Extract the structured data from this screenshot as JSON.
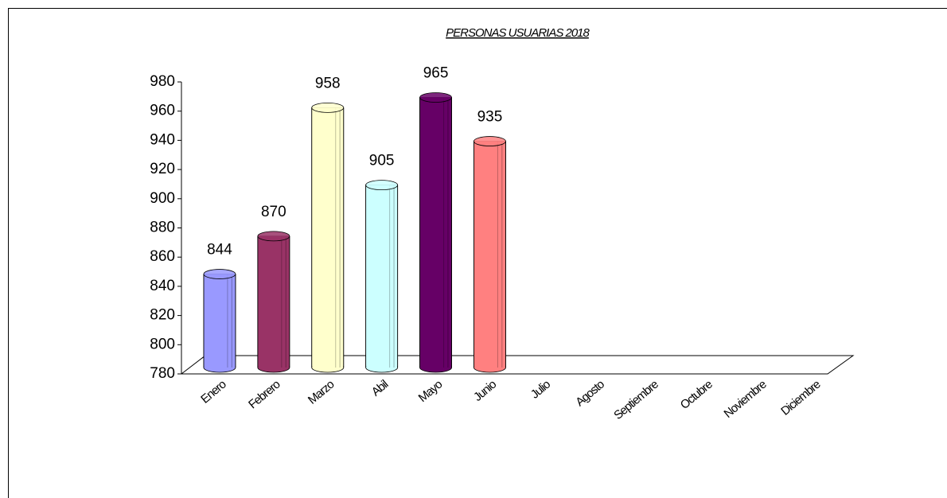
{
  "chart_data": {
    "type": "bar3d",
    "title": "PERSONAS USUARIAS 2018",
    "categories": [
      "Enero",
      "Febrero",
      "Marzo",
      "Abil",
      "Mayo",
      "Junio",
      "Julio",
      "Agosto",
      "Septiembre",
      "Octubre",
      "Noviembre",
      "Diciembre"
    ],
    "values": [
      844,
      870,
      958,
      905,
      965,
      935,
      null,
      null,
      null,
      null,
      null,
      null
    ],
    "colors": [
      "#9999ff",
      "#993366",
      "#ffffcc",
      "#ccffff",
      "#660066",
      "#ff8080",
      null,
      null,
      null,
      null,
      null,
      null
    ],
    "ylim": [
      780,
      980
    ],
    "yticks": [
      780,
      800,
      820,
      840,
      860,
      880,
      900,
      920,
      940,
      960,
      980
    ]
  }
}
